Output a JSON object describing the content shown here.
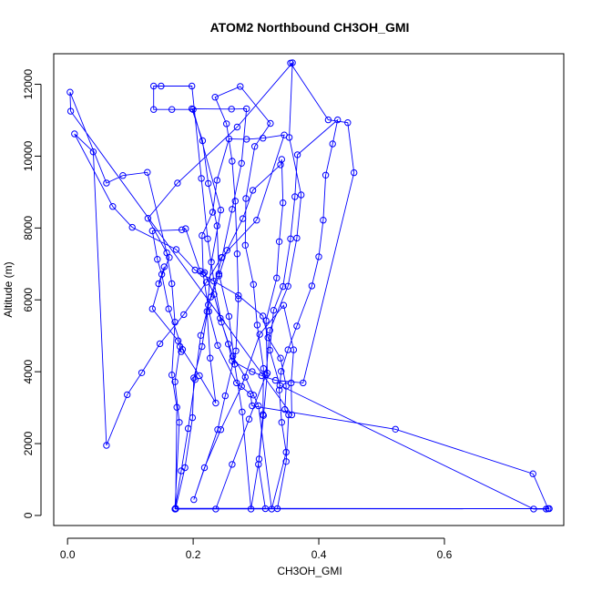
{
  "chart_data": {
    "type": "line",
    "title": "ATOM2 Northbound CH3OH_GMI",
    "xlabel": "CH3OH_GMI",
    "ylabel": "Altitude (m)",
    "xlim": [
      -0.022,
      0.79
    ],
    "ylim": [
      -280,
      12850
    ],
    "xticks": [
      0.0,
      0.2,
      0.4,
      0.6
    ],
    "xtick_labels": [
      "0.0",
      "0.2",
      "0.4",
      "0.6"
    ],
    "yticks": [
      0,
      2000,
      4000,
      6000,
      8000,
      10000,
      12000
    ],
    "ytick_labels": [
      "0",
      "2000",
      "4000",
      "6000",
      "8000",
      "10000",
      "12000"
    ],
    "grid": false,
    "legend": "none",
    "series": [
      {
        "color": "#0000ff",
        "marker": "open-circle",
        "points": [
          [
            0.236,
            180
          ],
          [
            0.262,
            1420
          ],
          [
            0.289,
            2680
          ],
          [
            0.316,
            3910
          ],
          [
            0.322,
            5150
          ],
          [
            0.351,
            6380
          ],
          [
            0.365,
            7720
          ],
          [
            0.372,
            8920
          ],
          [
            0.353,
            10520
          ],
          [
            0.358,
            12600
          ],
          [
            0.27,
            10810
          ],
          [
            0.175,
            9250
          ],
          [
            0.128,
            8270
          ],
          [
            0.162,
            7180
          ],
          [
            0.145,
            6450
          ],
          [
            0.154,
            6920
          ],
          [
            0.135,
            5750
          ],
          [
            0.176,
            4860
          ],
          [
            0.181,
            4560
          ],
          [
            0.179,
            4700
          ],
          [
            0.171,
            3720
          ],
          [
            0.178,
            2590
          ],
          [
            0.171,
            180
          ],
          [
            0.181,
            1240
          ],
          [
            0.192,
            2420
          ],
          [
            0.203,
            3780
          ],
          [
            0.212,
            5010
          ],
          [
            0.228,
            6080
          ],
          [
            0.246,
            7180
          ],
          [
            0.262,
            8520
          ],
          [
            0.277,
            9800
          ],
          [
            0.285,
            11320
          ],
          [
            0.261,
            11310
          ],
          [
            0.198,
            11320
          ],
          [
            0.215,
            10430
          ],
          [
            0.224,
            9240
          ],
          [
            0.238,
            8060
          ],
          [
            0.241,
            6720
          ],
          [
            0.257,
            5540
          ],
          [
            0.266,
            4210
          ],
          [
            0.278,
            2880
          ],
          [
            0.292,
            180
          ],
          [
            0.305,
            1570
          ],
          [
            0.312,
            2780
          ],
          [
            0.318,
            3960
          ],
          [
            0.316,
            5420
          ],
          [
            0.333,
            6610
          ],
          [
            0.337,
            7620
          ],
          [
            0.343,
            8700
          ],
          [
            0.341,
            9910
          ],
          [
            0.339,
            9760
          ],
          [
            0.295,
            9050
          ],
          [
            0.279,
            8260
          ],
          [
            0.254,
            7380
          ],
          [
            0.241,
            6670
          ],
          [
            0.224,
            5860
          ],
          [
            0.214,
            4700
          ],
          [
            0.201,
            3830
          ],
          [
            0.199,
            2720
          ],
          [
            0.187,
            1330
          ],
          [
            0.172,
            200
          ],
          [
            0.765,
            190
          ],
          [
            0.741,
            1160
          ],
          [
            0.522,
            2400
          ],
          [
            0.294,
            3050
          ],
          [
            0.291,
            3380
          ],
          [
            0.269,
            3690
          ],
          [
            0.239,
            4730
          ],
          [
            0.225,
            5680
          ],
          [
            0.216,
            6720
          ],
          [
            0.214,
            7790
          ],
          [
            0.231,
            8440
          ],
          [
            0.238,
            9330
          ],
          [
            0.257,
            10480
          ],
          [
            0.285,
            10470
          ],
          [
            0.311,
            10500
          ],
          [
            0.345,
            10590
          ],
          [
            0.301,
            8220
          ],
          [
            0.245,
            7180
          ],
          [
            0.221,
            6490
          ],
          [
            0.185,
            5590
          ],
          [
            0.147,
            4780
          ],
          [
            0.118,
            3970
          ],
          [
            0.095,
            3360
          ],
          [
            0.062,
            1950
          ],
          [
            0.041,
            10120
          ],
          [
            0.011,
            10620
          ],
          [
            0.072,
            8600
          ],
          [
            0.103,
            8020
          ],
          [
            0.173,
            7400
          ],
          [
            0.203,
            6830
          ],
          [
            0.272,
            6120
          ],
          [
            0.311,
            5550
          ],
          [
            0.319,
            4950
          ],
          [
            0.339,
            4380
          ],
          [
            0.348,
            3600
          ],
          [
            0.346,
            2950
          ],
          [
            0.352,
            2800
          ],
          [
            0.348,
            1500
          ],
          [
            0.334,
            190
          ],
          [
            0.315,
            190
          ],
          [
            0.304,
            1420
          ],
          [
            0.311,
            2810
          ],
          [
            0.312,
            4090
          ],
          [
            0.302,
            5300
          ],
          [
            0.296,
            6430
          ],
          [
            0.283,
            7520
          ],
          [
            0.284,
            8820
          ],
          [
            0.298,
            10270
          ],
          [
            0.323,
            10910
          ],
          [
            0.275,
            11940
          ],
          [
            0.235,
            11640
          ],
          [
            0.253,
            10900
          ],
          [
            0.262,
            9860
          ],
          [
            0.267,
            8750
          ],
          [
            0.27,
            7280
          ],
          [
            0.272,
            6030
          ],
          [
            0.268,
            4580
          ],
          [
            0.251,
            3330
          ],
          [
            0.239,
            2390
          ],
          [
            0.201,
            440
          ],
          [
            0.218,
            1330
          ],
          [
            0.244,
            2390
          ],
          [
            0.277,
            3590
          ],
          [
            0.306,
            5040
          ],
          [
            0.344,
            5850
          ],
          [
            0.36,
            4610
          ],
          [
            0.356,
            3690
          ],
          [
            0.357,
            2800
          ],
          [
            0.005,
            11250
          ],
          [
            0.004,
            11780
          ],
          [
            0.062,
            9250
          ],
          [
            0.088,
            9460
          ],
          [
            0.127,
            9550
          ],
          [
            0.158,
            7310
          ],
          [
            0.166,
            6450
          ],
          [
            0.171,
            5380
          ],
          [
            0.166,
            3910
          ],
          [
            0.174,
            3010
          ],
          [
            0.172,
            180
          ],
          [
            0.767,
            190
          ],
          [
            0.762,
            180
          ],
          [
            0.742,
            180
          ],
          [
            0.338,
            3620
          ],
          [
            0.322,
            4600
          ],
          [
            0.328,
            5710
          ],
          [
            0.343,
            6370
          ],
          [
            0.355,
            7700
          ],
          [
            0.362,
            8870
          ],
          [
            0.366,
            10040
          ],
          [
            0.43,
            11010
          ],
          [
            0.422,
            10340
          ],
          [
            0.411,
            9470
          ],
          [
            0.407,
            8220
          ],
          [
            0.4,
            7200
          ],
          [
            0.389,
            6390
          ],
          [
            0.365,
            5270
          ],
          [
            0.351,
            4610
          ],
          [
            0.34,
            4010
          ],
          [
            0.337,
            3490
          ],
          [
            0.341,
            2590
          ],
          [
            0.348,
            1760
          ],
          [
            0.325,
            180
          ],
          [
            0.304,
            3050
          ],
          [
            0.296,
            3350
          ],
          [
            0.283,
            3850
          ],
          [
            0.263,
            4430
          ],
          [
            0.245,
            5380
          ],
          [
            0.233,
            6520
          ],
          [
            0.223,
            7700
          ],
          [
            0.213,
            9380
          ],
          [
            0.198,
            11950
          ],
          [
            0.149,
            11950
          ],
          [
            0.137,
            11950
          ],
          [
            0.137,
            11300
          ],
          [
            0.166,
            11300
          ],
          [
            0.2,
            11300
          ],
          [
            0.244,
            8500
          ],
          [
            0.229,
            7050
          ],
          [
            0.222,
            5680
          ],
          [
            0.227,
            4380
          ],
          [
            0.236,
            3130
          ],
          [
            0.21,
            3890
          ],
          [
            0.183,
            4620
          ],
          [
            0.161,
            5750
          ],
          [
            0.15,
            6710
          ],
          [
            0.143,
            7130
          ],
          [
            0.135,
            7920
          ],
          [
            0.182,
            7950
          ],
          [
            0.188,
            7980
          ],
          [
            0.211,
            6800
          ],
          [
            0.218,
            6760
          ],
          [
            0.233,
            6150
          ],
          [
            0.243,
            5490
          ],
          [
            0.256,
            4770
          ],
          [
            0.262,
            4300
          ],
          [
            0.294,
            4000
          ],
          [
            0.309,
            3890
          ],
          [
            0.331,
            3760
          ],
          [
            0.375,
            3690
          ],
          [
            0.456,
            9540
          ],
          [
            0.446,
            10930
          ],
          [
            0.415,
            11010
          ],
          [
            0.355,
            12590
          ]
        ]
      }
    ]
  }
}
